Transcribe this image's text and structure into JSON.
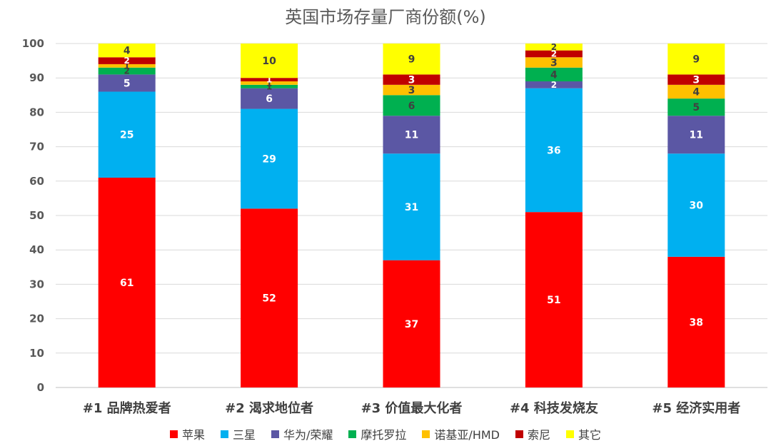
{
  "chart_data": {
    "type": "bar",
    "stacked": true,
    "title": "英国市场存量厂商份额(%)",
    "xlabel": "",
    "ylabel": "",
    "ylim": [
      0,
      100
    ],
    "yticks": [
      0,
      10,
      20,
      30,
      40,
      50,
      60,
      70,
      80,
      90,
      100
    ],
    "grid": true,
    "legend_position": "bottom",
    "categories": [
      "#1 品牌热爱者",
      "#2 渴求地位者",
      "#3 价值最大化者",
      "#4 科技发烧友",
      "#5 经济实用者"
    ],
    "series": [
      {
        "name": "苹果",
        "color": "#FF0000",
        "label_color": "#FFFFFF",
        "values": [
          61,
          52,
          37,
          51,
          38
        ]
      },
      {
        "name": "三星",
        "color": "#00B0F0",
        "label_color": "#FFFFFF",
        "values": [
          25,
          29,
          31,
          36,
          30
        ]
      },
      {
        "name": "华为/荣耀",
        "color": "#5B57A4",
        "label_color": "#FFFFFF",
        "values": [
          5,
          6,
          11,
          2,
          11
        ]
      },
      {
        "name": "摩托罗拉",
        "color": "#00B050",
        "label_color": "#404040",
        "values": [
          2,
          1,
          6,
          4,
          5
        ]
      },
      {
        "name": "诺基亚/HMD",
        "color": "#FFC000",
        "label_color": "#404040",
        "values": [
          1,
          1,
          3,
          3,
          4
        ]
      },
      {
        "name": "索尼",
        "color": "#C00000",
        "label_color": "#FFFFFF",
        "values": [
          2,
          1,
          3,
          2,
          3
        ]
      },
      {
        "name": "其它",
        "color": "#FFFF00",
        "label_color": "#404040",
        "values": [
          4,
          10,
          9,
          2,
          9
        ]
      }
    ]
  }
}
